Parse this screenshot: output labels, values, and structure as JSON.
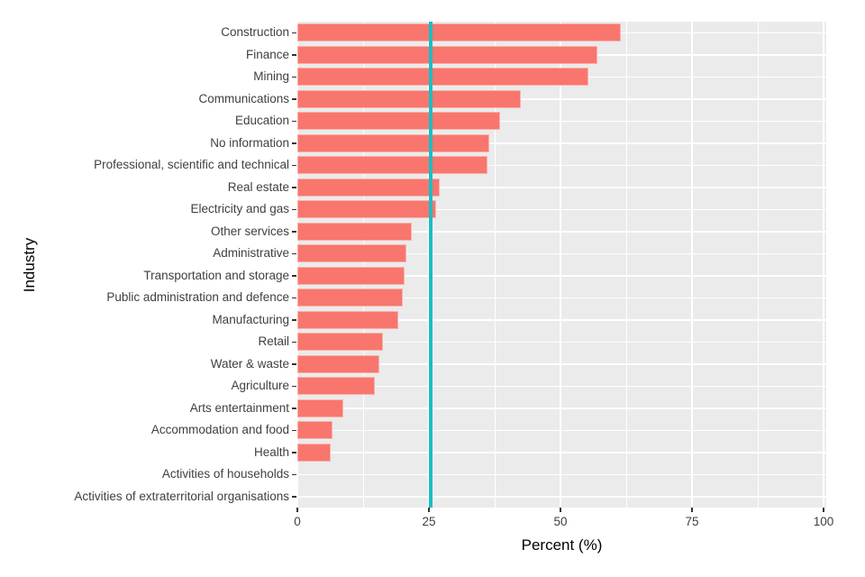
{
  "chart_data": {
    "type": "bar",
    "orientation": "horizontal",
    "xlabel": "Percent (%)",
    "ylabel": "Industry",
    "xlim": [
      0,
      100
    ],
    "x_major_ticks": [
      0,
      25,
      50,
      75,
      100
    ],
    "x_minor_gridlines": [
      12.5,
      37.5,
      62.5,
      87.5
    ],
    "categories": [
      "Construction",
      "Finance",
      "Mining",
      "Communications",
      "Education",
      "No information",
      "Professional, scientific and technical",
      "Real estate",
      "Electricity and gas",
      "Other services",
      "Administrative",
      "Transportation and storage",
      "Public administration and defence",
      "Manufacturing",
      "Retail",
      "Water & waste",
      "Agriculture",
      "Arts entertainment",
      "Accommodation and food",
      "Health",
      "Activities of households",
      "Activities of extraterritorial organisations"
    ],
    "values": [
      61.4,
      57.1,
      55.3,
      42.4,
      38.6,
      36.5,
      36.2,
      27.0,
      26.4,
      21.8,
      20.7,
      20.4,
      20.0,
      19.2,
      16.2,
      15.5,
      14.8,
      8.7,
      6.6,
      6.4,
      0,
      0
    ],
    "reference_line": {
      "x": 25.3,
      "color": "#1CBDC4"
    },
    "colors": {
      "bar_fill": "#F8766D",
      "bar_border": "#FBB0AA",
      "panel_background": "#EBEBEB",
      "gridline": "#FFFFFF",
      "tick": "#333333",
      "tick_label_text": "#404040",
      "axis_title_text": "#000000"
    },
    "legend": "none",
    "grid": "on"
  }
}
